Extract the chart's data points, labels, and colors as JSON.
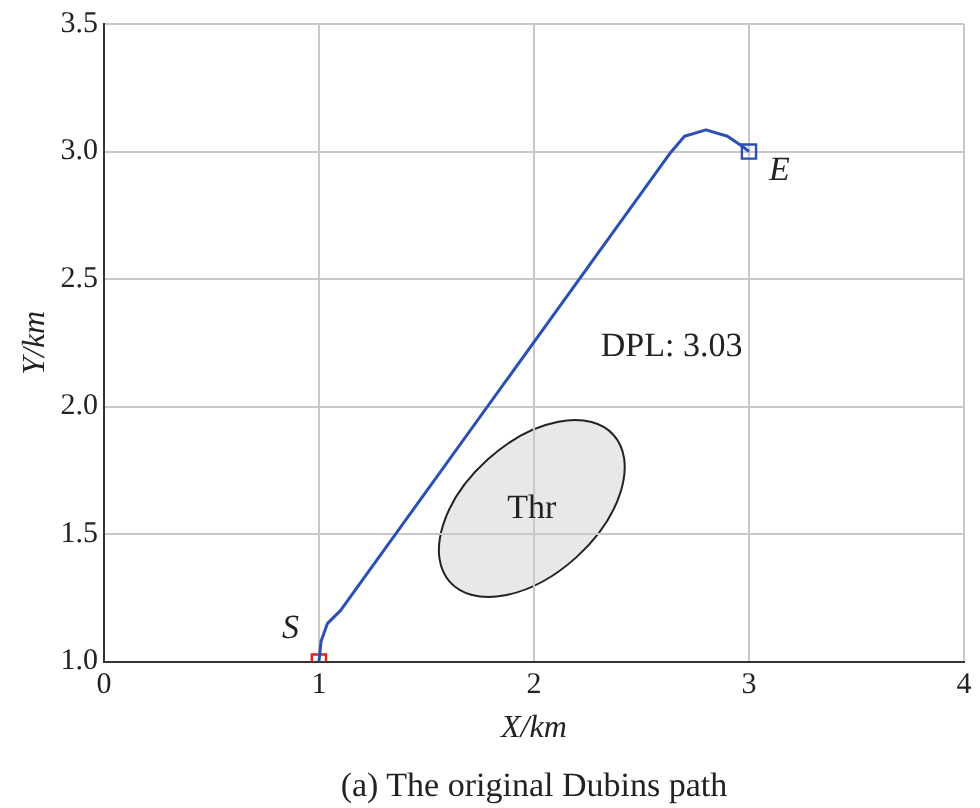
{
  "chart_data": {
    "type": "line",
    "xlabel": "X/km",
    "ylabel": "Y/km",
    "xlim": [
      0,
      4
    ],
    "xticks": [
      0,
      1,
      2,
      3,
      4
    ],
    "ylim": [
      1,
      3.5
    ],
    "yticks": [
      {
        "value": 1,
        "label": "1.0"
      },
      {
        "value": 1.5,
        "label": "1.5"
      },
      {
        "value": 2,
        "label": "2.0"
      },
      {
        "value": 2.5,
        "label": "2.5"
      },
      {
        "value": 3,
        "label": "3.0"
      },
      {
        "value": 3.5,
        "label": "3.5"
      }
    ],
    "grid": true,
    "legend": false,
    "series": [
      {
        "color": "#2a4fb5",
        "marker": "none",
        "x": [
          1,
          1.01,
          1.04,
          1.1,
          2.63,
          2.7,
          2.8,
          2.9,
          2.97,
          3
        ],
        "values": [
          1,
          1.08,
          1.15,
          1.2,
          2.99,
          3.06,
          3.085,
          3.06,
          3.02,
          3
        ]
      },
      {
        "type": "scatter",
        "color": "#e02020",
        "marker": "square",
        "x": [
          1
        ],
        "values": [
          1
        ]
      },
      {
        "type": "scatter",
        "color": "#2a4fb5",
        "marker": "square",
        "x": [
          3
        ],
        "values": [
          3
        ]
      }
    ],
    "annotations": [
      {
        "text": "S",
        "x": 1,
        "y": 1
      },
      {
        "text": "E",
        "x": 3,
        "y": 3
      },
      "Thr",
      "DPL: 3.03",
      "(a) The original Dubins path"
    ]
  }
}
